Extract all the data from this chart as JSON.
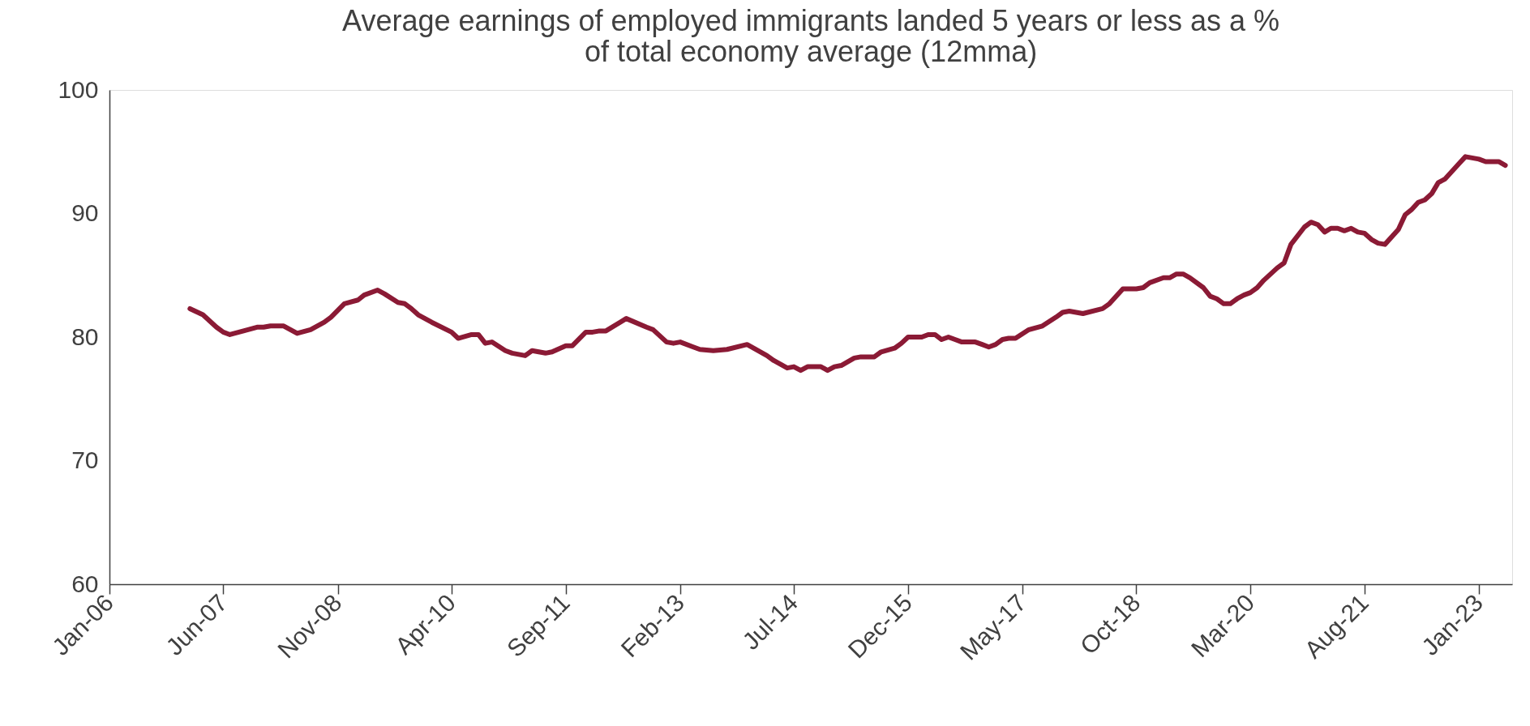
{
  "chart_data": {
    "type": "line",
    "title": "Average earnings of employed immigrants landed 5 years or less as a %\nof total economy average (12mma)",
    "x": [
      "2007-01",
      "2007-03",
      "2007-05",
      "2007-06",
      "2007-07",
      "2007-09",
      "2007-11",
      "2007-12",
      "2008-01",
      "2008-03",
      "2008-05",
      "2008-07",
      "2008-09",
      "2008-10",
      "2008-12",
      "2009-02",
      "2009-03",
      "2009-05",
      "2009-06",
      "2009-08",
      "2009-09",
      "2009-10",
      "2009-11",
      "2010-01",
      "2010-04",
      "2010-05",
      "2010-07",
      "2010-08",
      "2010-09",
      "2010-10",
      "2010-12",
      "2011-01",
      "2011-03",
      "2011-04",
      "2011-06",
      "2011-07",
      "2011-09",
      "2011-10",
      "2011-12",
      "2012-01",
      "2012-02",
      "2012-03",
      "2012-06",
      "2012-09",
      "2012-10",
      "2012-12",
      "2013-01",
      "2013-02",
      "2013-04",
      "2013-05",
      "2013-07",
      "2013-09",
      "2013-12",
      "2014-03",
      "2014-04",
      "2014-06",
      "2014-07",
      "2014-08",
      "2014-09",
      "2014-11",
      "2014-12",
      "2015-01",
      "2015-02",
      "2015-04",
      "2015-05",
      "2015-07",
      "2015-08",
      "2015-10",
      "2015-11",
      "2015-12",
      "2016-02",
      "2016-03",
      "2016-04",
      "2016-05",
      "2016-06",
      "2016-07",
      "2016-08",
      "2016-10",
      "2016-11",
      "2016-12",
      "2017-01",
      "2017-02",
      "2017-03",
      "2017-04",
      "2017-06",
      "2017-08",
      "2017-10",
      "2017-11",
      "2017-12",
      "2018-02",
      "2018-05",
      "2018-06",
      "2018-08",
      "2018-10",
      "2018-11",
      "2018-12",
      "2019-02",
      "2019-03",
      "2019-04",
      "2019-05",
      "2019-06",
      "2019-08",
      "2019-09",
      "2019-10",
      "2019-11",
      "2019-12",
      "2020-01",
      "2020-02",
      "2020-03",
      "2020-04",
      "2020-05",
      "2020-07",
      "2020-08",
      "2020-09",
      "2020-11",
      "2020-12",
      "2021-01",
      "2021-02",
      "2021-03",
      "2021-04",
      "2021-05",
      "2021-06",
      "2021-07",
      "2021-08",
      "2021-09",
      "2021-10",
      "2021-11",
      "2022-01",
      "2022-02",
      "2022-03",
      "2022-04",
      "2022-05",
      "2022-06",
      "2022-07",
      "2022-08",
      "2022-10",
      "2022-11",
      "2023-01",
      "2023-02",
      "2023-04",
      "2023-05"
    ],
    "series": [
      {
        "color": "#8b1a35",
        "values": [
          82.3,
          81.8,
          80.8,
          80.4,
          80.2,
          80.5,
          80.8,
          80.8,
          80.9,
          80.9,
          80.3,
          80.6,
          81.2,
          81.6,
          82.7,
          83.0,
          83.4,
          83.8,
          83.5,
          82.8,
          82.7,
          82.3,
          81.8,
          81.2,
          80.4,
          79.9,
          80.2,
          80.2,
          79.5,
          79.6,
          78.9,
          78.7,
          78.5,
          78.9,
          78.7,
          78.8,
          79.3,
          79.3,
          80.4,
          80.4,
          80.5,
          80.5,
          81.5,
          80.8,
          80.6,
          79.6,
          79.5,
          79.6,
          79.2,
          79.0,
          78.9,
          79.0,
          79.4,
          78.5,
          78.1,
          77.5,
          77.6,
          77.3,
          77.6,
          77.6,
          77.3,
          77.6,
          77.7,
          78.3,
          78.4,
          78.4,
          78.8,
          79.1,
          79.5,
          80.0,
          80.0,
          80.2,
          80.2,
          79.8,
          80.0,
          79.8,
          79.6,
          79.6,
          79.4,
          79.2,
          79.4,
          79.8,
          79.9,
          79.9,
          80.6,
          80.9,
          81.6,
          82.0,
          82.1,
          81.9,
          82.3,
          82.7,
          83.9,
          83.9,
          84.0,
          84.4,
          84.8,
          84.8,
          85.1,
          85.1,
          84.8,
          84.0,
          83.3,
          83.1,
          82.7,
          82.7,
          83.1,
          83.4,
          83.6,
          84.0,
          84.6,
          85.6,
          86.0,
          87.5,
          88.9,
          89.3,
          89.1,
          88.5,
          88.8,
          88.8,
          88.6,
          88.8,
          88.5,
          88.4,
          87.9,
          87.6,
          87.5,
          88.7,
          89.9,
          90.3,
          90.9,
          91.1,
          91.6,
          92.5,
          92.8,
          94.0,
          94.6,
          94.4,
          94.2,
          94.2,
          93.9
        ]
      }
    ],
    "xlim": [
      "2006-01",
      "2023-06"
    ],
    "xticks": [
      {
        "value": "2006-01",
        "label": "Jan-06"
      },
      {
        "value": "2007-06",
        "label": "Jun-07"
      },
      {
        "value": "2008-11",
        "label": "Nov-08"
      },
      {
        "value": "2010-04",
        "label": "Apr-10"
      },
      {
        "value": "2011-09",
        "label": "Sep-11"
      },
      {
        "value": "2013-02",
        "label": "Feb-13"
      },
      {
        "value": "2014-07",
        "label": "Jul-14"
      },
      {
        "value": "2015-12",
        "label": "Dec-15"
      },
      {
        "value": "2017-05",
        "label": "May-17"
      },
      {
        "value": "2018-10",
        "label": "Oct-18"
      },
      {
        "value": "2020-03",
        "label": "Mar-20"
      },
      {
        "value": "2021-08",
        "label": "Aug-21"
      },
      {
        "value": "2023-01",
        "label": "Jan-23"
      }
    ],
    "ylim": [
      60,
      100
    ],
    "yticks": [
      60,
      70,
      80,
      90,
      100
    ],
    "grid": false,
    "line_style": "solid"
  }
}
